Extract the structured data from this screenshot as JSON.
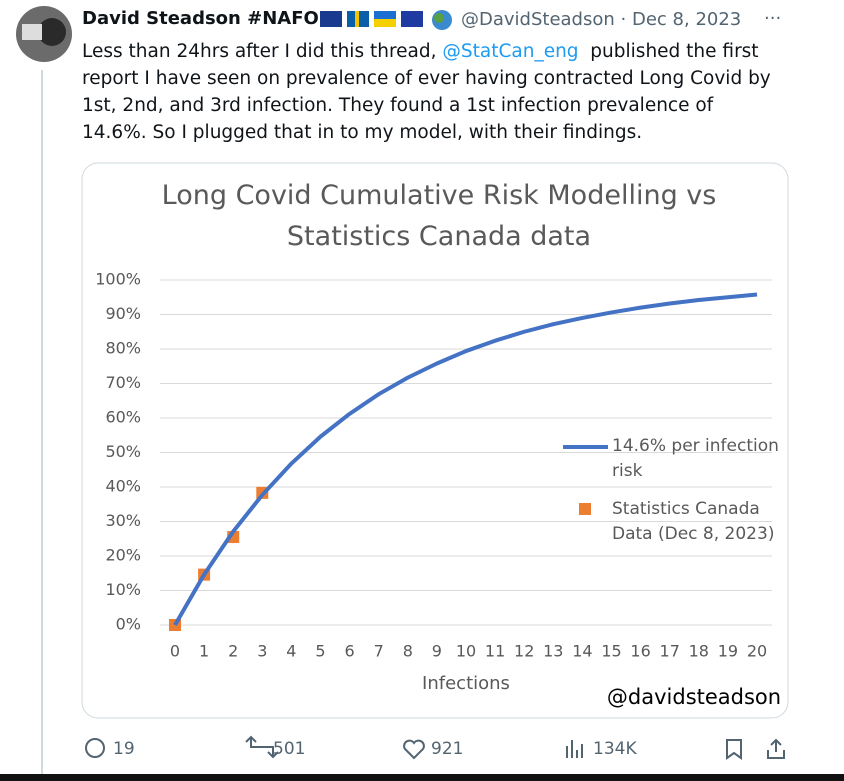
{
  "header": {
    "name": "David Steadson #NAFO",
    "handle": "@DavidSteadson",
    "separator": "·",
    "date": "Dec 8, 2023",
    "more": "···"
  },
  "body": {
    "before": "Less than 24hrs after I did this thread, ",
    "mention": "@StatCan_eng",
    "after": "  published the first report I have seen on prevalence of ever having contracted Long Covid by 1st, 2nd, and 3rd infection. They found a 1st infection prevalence of 14.6%. So I plugged that in to my model, with their findings."
  },
  "chart_data": {
    "type": "line",
    "title": "Long Covid Cumulative Risk Modelling vs Statistics Canada data",
    "x_label": "Infections",
    "annotation": "@davidsteadson",
    "xlim": [
      0,
      20
    ],
    "xticks": [
      0,
      1,
      2,
      3,
      4,
      5,
      6,
      7,
      8,
      9,
      10,
      11,
      12,
      13,
      14,
      15,
      16,
      17,
      18,
      19,
      20
    ],
    "ylim": [
      0,
      100
    ],
    "yticks": [
      {
        "value": 0,
        "label": "0%"
      },
      {
        "value": 10,
        "label": "10%"
      },
      {
        "value": 20,
        "label": "20%"
      },
      {
        "value": 30,
        "label": "30%"
      },
      {
        "value": 40,
        "label": "40%"
      },
      {
        "value": 50,
        "label": "50%"
      },
      {
        "value": 60,
        "label": "60%"
      },
      {
        "value": 70,
        "label": "70%"
      },
      {
        "value": 80,
        "label": "80%"
      },
      {
        "value": 90,
        "label": "90%"
      },
      {
        "value": 100,
        "label": "100%"
      }
    ],
    "grid": true,
    "series": [
      {
        "name": "14.6% per infection risk",
        "color": "#4472c4",
        "style": "line",
        "x": [
          0,
          1,
          2,
          3,
          4,
          5,
          6,
          7,
          8,
          9,
          10,
          11,
          12,
          13,
          14,
          15,
          16,
          17,
          18,
          19,
          20
        ],
        "values": [
          0,
          14.6,
          27.1,
          37.7,
          46.8,
          54.6,
          61.2,
          66.9,
          71.7,
          75.8,
          79.4,
          82.4,
          85,
          87.2,
          89,
          90.6,
          92,
          93.2,
          94.2,
          95,
          95.8
        ]
      },
      {
        "name": "Statistics Canada Data (Dec 8, 2023)",
        "color": "#ed7d31",
        "style": "marker",
        "x": [
          0,
          1,
          2,
          3
        ],
        "values": [
          0,
          14.6,
          25.5,
          38.3
        ]
      }
    ]
  },
  "metrics": {
    "replies": "19",
    "reposts": "501",
    "likes": "921",
    "views": "134K"
  }
}
